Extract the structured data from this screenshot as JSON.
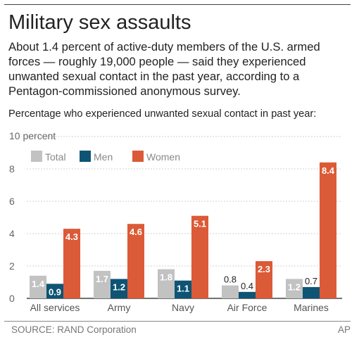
{
  "header": {
    "title": "Military sex assaults",
    "description": "About 1.4 percent of active-duty members of the U.S. armed forces —  roughly 19,000 people —  said they experienced unwanted sexual contact in the past year, according to a Pentagon-commissioned anonymous survey.",
    "subhead": "Percentage who experienced unwanted sexual contact in past year:"
  },
  "colors": {
    "total": "#c2c2c2",
    "men": "#0d5475",
    "women": "#db5a37",
    "grid": "#d2d2d2",
    "axis": "#444444"
  },
  "chart_data": {
    "type": "bar",
    "categories": [
      "All services",
      "Army",
      "Navy",
      "Air Force",
      "Marines"
    ],
    "series": [
      {
        "name": "Total",
        "values": [
          1.4,
          1.7,
          1.8,
          0.8,
          1.2
        ]
      },
      {
        "name": "Men",
        "values": [
          0.9,
          1.2,
          1.1,
          0.4,
          0.7
        ]
      },
      {
        "name": "Women",
        "values": [
          4.3,
          4.6,
          5.1,
          2.3,
          8.4
        ]
      }
    ],
    "value_labels": [
      [
        "1.4",
        "1.7",
        "1.8",
        "0.8",
        "1.2"
      ],
      [
        "0.9",
        "1.2",
        "1.1",
        "0.4",
        "0.7"
      ],
      [
        "4.3",
        "4.6",
        "5.1",
        "2.3",
        "8.4"
      ]
    ],
    "yticks": [
      0,
      2,
      4,
      6,
      8,
      10
    ],
    "ytick_labels": [
      "0",
      "2",
      "4",
      "6",
      "8",
      "10 percent"
    ],
    "ylim": [
      0,
      10
    ],
    "grid": true,
    "legend": "top-left"
  },
  "footer": {
    "source": "SOURCE: RAND Corporation",
    "credit": "AP"
  }
}
